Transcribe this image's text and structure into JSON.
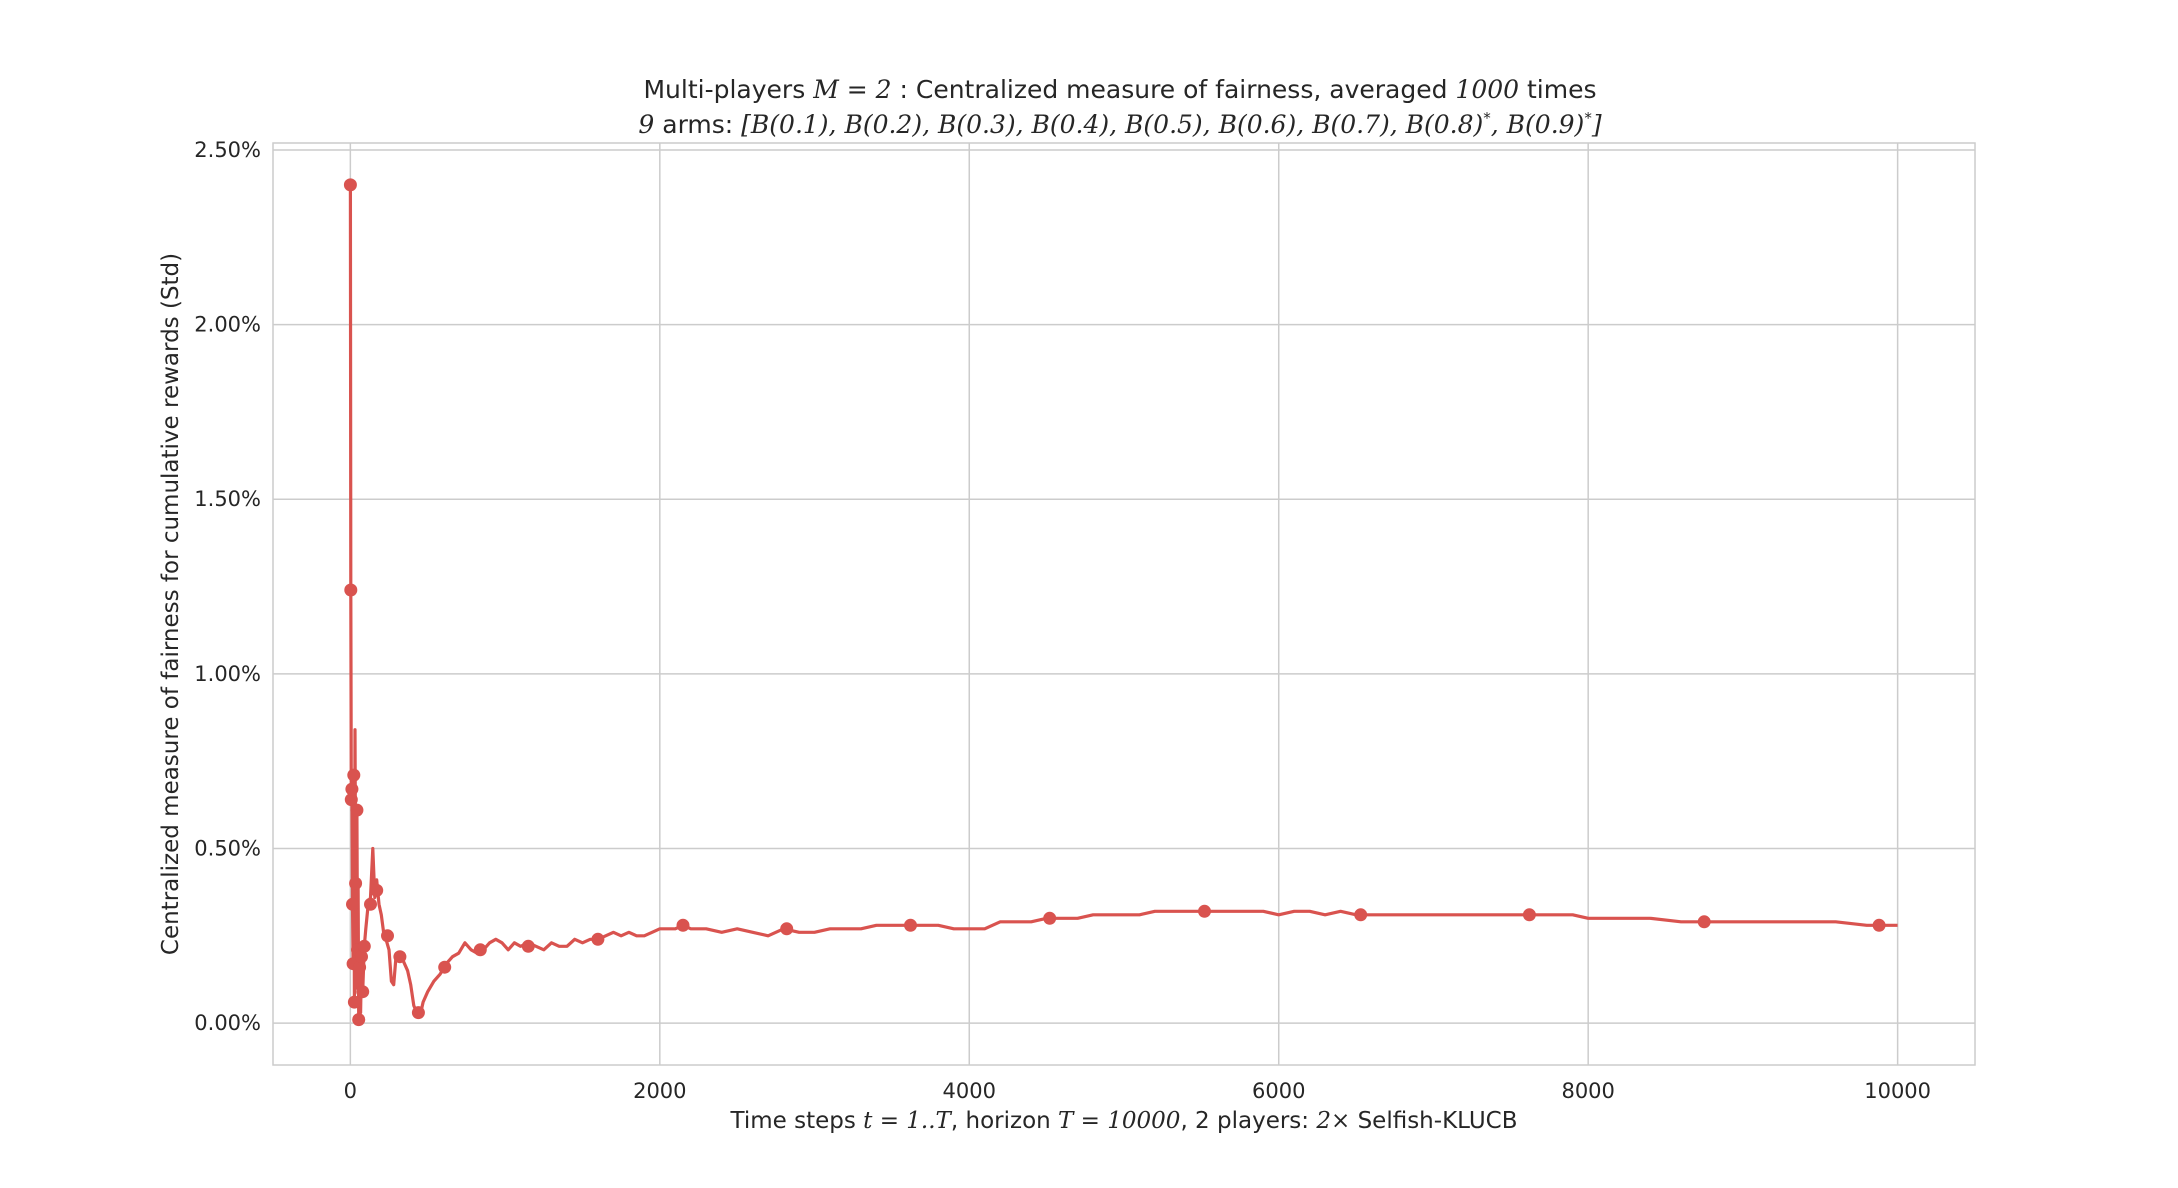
{
  "chart_data": {
    "type": "line",
    "title_line1": "Multi-players M = 2 : Centralized measure of fairness, averaged 1000 times",
    "title_line2": "9 arms: [B(0.1), B(0.2), B(0.3), B(0.4), B(0.5), B(0.6), B(0.7), B(0.8)*, B(0.9)*]",
    "xlabel": "Time steps t = 1..T, horizon T = 10000, 2 players: 2× Selfish-KLUCB",
    "ylabel": "Centralized measure of fairness for cumulative rewards (Std)",
    "xlim": [
      -500,
      10500
    ],
    "ylim": [
      -0.0012,
      0.0252
    ],
    "xticks": [
      0,
      2000,
      4000,
      6000,
      8000,
      10000
    ],
    "xtick_labels": [
      "0",
      "2000",
      "4000",
      "6000",
      "8000",
      "10000"
    ],
    "yticks": [
      0,
      0.005,
      0.01,
      0.015,
      0.02,
      0.025
    ],
    "ytick_labels": [
      "0.00%",
      "0.50%",
      "1.00%",
      "1.50%",
      "2.00%",
      "2.50%"
    ],
    "grid": true,
    "color": "#d9534f",
    "series": [
      {
        "name": "",
        "line": [
          [
            0,
            0.024
          ],
          [
            3,
            0.0124
          ],
          [
            6,
            0.0064
          ],
          [
            10,
            0.0067
          ],
          [
            14,
            0.0034
          ],
          [
            18,
            0.0017
          ],
          [
            22,
            0.0071
          ],
          [
            26,
            0.0006
          ],
          [
            30,
            0.0084
          ],
          [
            34,
            0.004
          ],
          [
            38,
            0.001
          ],
          [
            42,
            0.0061
          ],
          [
            46,
            0.0021
          ],
          [
            50,
            0.004
          ],
          [
            54,
            0.0001
          ],
          [
            60,
            0.0016
          ],
          [
            66,
            0.0003
          ],
          [
            72,
            0.0019
          ],
          [
            80,
            0.0009
          ],
          [
            90,
            0.0022
          ],
          [
            100,
            0.0027
          ],
          [
            115,
            0.0034
          ],
          [
            130,
            0.0036
          ],
          [
            145,
            0.005
          ],
          [
            158,
            0.0036
          ],
          [
            170,
            0.0041
          ],
          [
            185,
            0.0034
          ],
          [
            200,
            0.0031
          ],
          [
            215,
            0.0026
          ],
          [
            230,
            0.0024
          ],
          [
            250,
            0.0021
          ],
          [
            265,
            0.0012
          ],
          [
            280,
            0.0011
          ],
          [
            295,
            0.0019
          ],
          [
            310,
            0.0018
          ],
          [
            330,
            0.0019
          ],
          [
            350,
            0.0017
          ],
          [
            370,
            0.0015
          ],
          [
            390,
            0.0011
          ],
          [
            410,
            0.0005
          ],
          [
            430,
            0.0003
          ],
          [
            450,
            0.0002
          ],
          [
            470,
            0.0006
          ],
          [
            500,
            0.0009
          ],
          [
            540,
            0.0012
          ],
          [
            580,
            0.0014
          ],
          [
            620,
            0.0017
          ],
          [
            660,
            0.0019
          ],
          [
            700,
            0.002
          ],
          [
            740,
            0.0023
          ],
          [
            780,
            0.0021
          ],
          [
            820,
            0.002
          ],
          [
            860,
            0.0021
          ],
          [
            900,
            0.0023
          ],
          [
            940,
            0.0024
          ],
          [
            980,
            0.0023
          ],
          [
            1020,
            0.0021
          ],
          [
            1060,
            0.0023
          ],
          [
            1100,
            0.0022
          ],
          [
            1150,
            0.0023
          ],
          [
            1200,
            0.0022
          ],
          [
            1250,
            0.0021
          ],
          [
            1300,
            0.0023
          ],
          [
            1350,
            0.0022
          ],
          [
            1400,
            0.0022
          ],
          [
            1450,
            0.0024
          ],
          [
            1500,
            0.0023
          ],
          [
            1550,
            0.0024
          ],
          [
            1600,
            0.0024
          ],
          [
            1650,
            0.0025
          ],
          [
            1700,
            0.0026
          ],
          [
            1750,
            0.0025
          ],
          [
            1800,
            0.0026
          ],
          [
            1850,
            0.0025
          ],
          [
            1900,
            0.0025
          ],
          [
            1950,
            0.0026
          ],
          [
            2000,
            0.0027
          ],
          [
            2050,
            0.0027
          ],
          [
            2100,
            0.0027
          ],
          [
            2150,
            0.0028
          ],
          [
            2200,
            0.0027
          ],
          [
            2300,
            0.0027
          ],
          [
            2400,
            0.0026
          ],
          [
            2500,
            0.0027
          ],
          [
            2600,
            0.0026
          ],
          [
            2700,
            0.0025
          ],
          [
            2800,
            0.0027
          ],
          [
            2900,
            0.0026
          ],
          [
            3000,
            0.0026
          ],
          [
            3100,
            0.0027
          ],
          [
            3200,
            0.0027
          ],
          [
            3300,
            0.0027
          ],
          [
            3400,
            0.0028
          ],
          [
            3500,
            0.0028
          ],
          [
            3600,
            0.0028
          ],
          [
            3700,
            0.0028
          ],
          [
            3800,
            0.0028
          ],
          [
            3900,
            0.0027
          ],
          [
            4000,
            0.0027
          ],
          [
            4100,
            0.0027
          ],
          [
            4200,
            0.0029
          ],
          [
            4300,
            0.0029
          ],
          [
            4400,
            0.0029
          ],
          [
            4500,
            0.003
          ],
          [
            4600,
            0.003
          ],
          [
            4700,
            0.003
          ],
          [
            4800,
            0.0031
          ],
          [
            4900,
            0.0031
          ],
          [
            5000,
            0.0031
          ],
          [
            5100,
            0.0031
          ],
          [
            5200,
            0.0032
          ],
          [
            5300,
            0.0032
          ],
          [
            5400,
            0.0032
          ],
          [
            5500,
            0.0032
          ],
          [
            5600,
            0.0032
          ],
          [
            5700,
            0.0032
          ],
          [
            5800,
            0.0032
          ],
          [
            5900,
            0.0032
          ],
          [
            6000,
            0.0031
          ],
          [
            6100,
            0.0032
          ],
          [
            6200,
            0.0032
          ],
          [
            6300,
            0.0031
          ],
          [
            6400,
            0.0032
          ],
          [
            6500,
            0.0031
          ],
          [
            6600,
            0.0031
          ],
          [
            6700,
            0.0031
          ],
          [
            6800,
            0.0031
          ],
          [
            6900,
            0.0031
          ],
          [
            7000,
            0.0031
          ],
          [
            7100,
            0.0031
          ],
          [
            7200,
            0.0031
          ],
          [
            7300,
            0.0031
          ],
          [
            7400,
            0.0031
          ],
          [
            7500,
            0.0031
          ],
          [
            7600,
            0.0031
          ],
          [
            7700,
            0.0031
          ],
          [
            7800,
            0.0031
          ],
          [
            7900,
            0.0031
          ],
          [
            8000,
            0.003
          ],
          [
            8200,
            0.003
          ],
          [
            8400,
            0.003
          ],
          [
            8600,
            0.0029
          ],
          [
            8800,
            0.0029
          ],
          [
            9000,
            0.0029
          ],
          [
            9200,
            0.0029
          ],
          [
            9400,
            0.0029
          ],
          [
            9600,
            0.0029
          ],
          [
            9800,
            0.0028
          ],
          [
            10000,
            0.0028
          ]
        ],
        "markers": [
          [
            0,
            0.024
          ],
          [
            3,
            0.0124
          ],
          [
            6,
            0.0064
          ],
          [
            10,
            0.0067
          ],
          [
            14,
            0.0034
          ],
          [
            18,
            0.0017
          ],
          [
            22,
            0.0071
          ],
          [
            26,
            0.0006
          ],
          [
            34,
            0.004
          ],
          [
            42,
            0.0061
          ],
          [
            46,
            0.0021
          ],
          [
            54,
            0.0001
          ],
          [
            60,
            0.0016
          ],
          [
            72,
            0.0019
          ],
          [
            80,
            0.0009
          ],
          [
            90,
            0.0022
          ],
          [
            130,
            0.0034
          ],
          [
            170,
            0.0038
          ],
          [
            240,
            0.0025
          ],
          [
            320,
            0.0019
          ],
          [
            440,
            0.0003
          ],
          [
            610,
            0.0016
          ],
          [
            840,
            0.0021
          ],
          [
            1150,
            0.0022
          ],
          [
            1600,
            0.0024
          ],
          [
            2150,
            0.0028
          ],
          [
            2820,
            0.0027
          ],
          [
            3620,
            0.0028
          ],
          [
            4520,
            0.003
          ],
          [
            5520,
            0.0032
          ],
          [
            6530,
            0.0031
          ],
          [
            7620,
            0.0031
          ],
          [
            8750,
            0.0029
          ],
          [
            9880,
            0.0028
          ]
        ]
      }
    ]
  }
}
